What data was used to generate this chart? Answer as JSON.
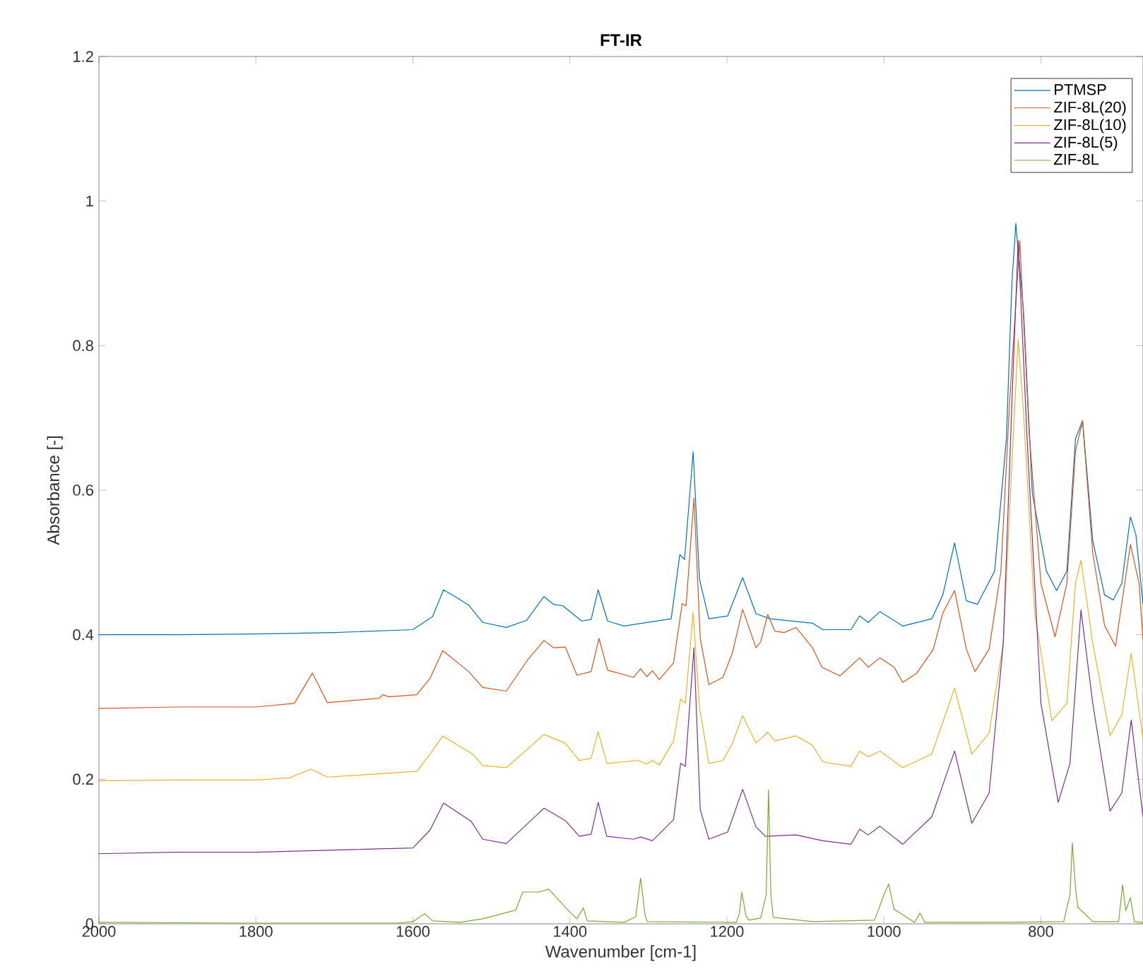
{
  "chart_data": {
    "type": "line",
    "title": "FT-IR",
    "xlabel": "Wavenumber [cm-1]",
    "ylabel": "Absorbance [-]",
    "xlim": [
      2000,
      670
    ],
    "ylim": [
      0,
      1.2
    ],
    "xticks": [
      2000,
      1800,
      1600,
      1400,
      1200,
      1000,
      800
    ],
    "yticks": [
      0,
      0.2,
      0.4,
      0.6,
      0.8,
      1,
      1.2
    ],
    "grid": false,
    "legend": "top right",
    "series": [
      {
        "name": "PTMSP",
        "color": "#0072bd",
        "x": [
          2000,
          1900,
          1800,
          1700,
          1600,
          1575,
          1561,
          1545,
          1529,
          1511,
          1481,
          1455,
          1433,
          1421,
          1409,
          1385,
          1373,
          1364,
          1352,
          1331,
          1271,
          1260,
          1254,
          1243,
          1235,
          1223,
          1199,
          1180,
          1163,
          1145,
          1091,
          1078,
          1042,
          1031,
          1020,
          1005,
          976,
          939,
          925,
          910,
          895,
          881,
          859,
          844,
          837,
          832,
          822,
          811,
          793,
          780,
          767,
          756,
          747,
          734,
          719,
          708,
          697,
          686,
          679,
          670
        ],
        "values": [
          0.4,
          0.4,
          0.401,
          0.403,
          0.407,
          0.425,
          0.462,
          0.452,
          0.441,
          0.417,
          0.41,
          0.42,
          0.453,
          0.442,
          0.44,
          0.419,
          0.421,
          0.462,
          0.419,
          0.412,
          0.422,
          0.511,
          0.504,
          0.653,
          0.477,
          0.422,
          0.426,
          0.479,
          0.429,
          0.422,
          0.416,
          0.407,
          0.407,
          0.426,
          0.417,
          0.432,
          0.412,
          0.422,
          0.455,
          0.527,
          0.447,
          0.442,
          0.488,
          0.671,
          0.886,
          0.969,
          0.845,
          0.596,
          0.488,
          0.461,
          0.488,
          0.671,
          0.696,
          0.53,
          0.455,
          0.448,
          0.471,
          0.563,
          0.538,
          0.442
        ]
      },
      {
        "name": "ZIF-8L(20)",
        "color": "#d95319",
        "x": [
          2000,
          1900,
          1800,
          1751,
          1728,
          1709,
          1643,
          1638,
          1631,
          1595,
          1578,
          1562,
          1529,
          1511,
          1481,
          1454,
          1433,
          1421,
          1406,
          1391,
          1373,
          1363,
          1352,
          1319,
          1310,
          1302,
          1295,
          1286,
          1268,
          1257,
          1252,
          1242,
          1234,
          1223,
          1205,
          1193,
          1180,
          1163,
          1157,
          1148,
          1139,
          1127,
          1112,
          1091,
          1079,
          1056,
          1031,
          1020,
          1005,
          987,
          976,
          958,
          937,
          925,
          910,
          895,
          884,
          866,
          851,
          840,
          827,
          815,
          800,
          782,
          767,
          756,
          747,
          734,
          719,
          705,
          686,
          675,
          670
        ],
        "values": [
          0.298,
          0.3,
          0.3,
          0.305,
          0.347,
          0.306,
          0.312,
          0.317,
          0.314,
          0.317,
          0.34,
          0.378,
          0.349,
          0.327,
          0.322,
          0.365,
          0.392,
          0.382,
          0.383,
          0.344,
          0.349,
          0.395,
          0.351,
          0.341,
          0.353,
          0.342,
          0.35,
          0.338,
          0.361,
          0.443,
          0.44,
          0.589,
          0.395,
          0.331,
          0.341,
          0.375,
          0.435,
          0.382,
          0.39,
          0.428,
          0.405,
          0.403,
          0.41,
          0.382,
          0.355,
          0.343,
          0.368,
          0.355,
          0.368,
          0.355,
          0.334,
          0.347,
          0.38,
          0.43,
          0.461,
          0.38,
          0.349,
          0.38,
          0.488,
          0.72,
          0.945,
          0.679,
          0.471,
          0.397,
          0.471,
          0.654,
          0.696,
          0.513,
          0.413,
          0.384,
          0.525,
          0.471,
          0.393
        ]
      },
      {
        "name": "ZIF-8L(10)",
        "color": "#edb120",
        "x": [
          2000,
          1900,
          1800,
          1757,
          1730,
          1709,
          1650,
          1595,
          1578,
          1562,
          1523,
          1511,
          1481,
          1433,
          1406,
          1388,
          1373,
          1364,
          1353,
          1313,
          1302,
          1295,
          1286,
          1268,
          1259,
          1253,
          1243,
          1235,
          1223,
          1205,
          1193,
          1180,
          1163,
          1148,
          1139,
          1112,
          1091,
          1078,
          1042,
          1031,
          1020,
          1005,
          976,
          939,
          910,
          888,
          866,
          848,
          837,
          829,
          822,
          808,
          786,
          767,
          756,
          749,
          734,
          712,
          697,
          685,
          670
        ],
        "values": [
          0.198,
          0.199,
          0.199,
          0.202,
          0.214,
          0.203,
          0.207,
          0.211,
          0.235,
          0.26,
          0.234,
          0.219,
          0.216,
          0.262,
          0.25,
          0.226,
          0.229,
          0.266,
          0.222,
          0.226,
          0.221,
          0.226,
          0.22,
          0.253,
          0.311,
          0.305,
          0.431,
          0.3,
          0.222,
          0.226,
          0.25,
          0.288,
          0.25,
          0.265,
          0.253,
          0.26,
          0.247,
          0.224,
          0.218,
          0.239,
          0.231,
          0.239,
          0.216,
          0.235,
          0.326,
          0.235,
          0.264,
          0.388,
          0.637,
          0.809,
          0.704,
          0.43,
          0.281,
          0.305,
          0.471,
          0.503,
          0.388,
          0.26,
          0.289,
          0.374,
          0.256
        ]
      },
      {
        "name": "ZIF-8L(5)",
        "color": "#7e2f8e",
        "x": [
          2000,
          1900,
          1800,
          1700,
          1600,
          1578,
          1561,
          1526,
          1511,
          1481,
          1433,
          1406,
          1388,
          1373,
          1364,
          1353,
          1319,
          1310,
          1295,
          1268,
          1259,
          1253,
          1242,
          1234,
          1223,
          1199,
          1180,
          1163,
          1151,
          1112,
          1078,
          1042,
          1031,
          1020,
          1005,
          976,
          939,
          910,
          888,
          866,
          848,
          837,
          829,
          818,
          800,
          778,
          763,
          749,
          734,
          712,
          697,
          685,
          670
        ],
        "values": [
          0.097,
          0.099,
          0.099,
          0.102,
          0.105,
          0.13,
          0.167,
          0.142,
          0.117,
          0.111,
          0.16,
          0.143,
          0.121,
          0.124,
          0.168,
          0.121,
          0.117,
          0.12,
          0.115,
          0.144,
          0.222,
          0.218,
          0.382,
          0.158,
          0.117,
          0.127,
          0.186,
          0.134,
          0.121,
          0.123,
          0.115,
          0.11,
          0.131,
          0.123,
          0.135,
          0.11,
          0.148,
          0.239,
          0.139,
          0.181,
          0.388,
          0.72,
          0.945,
          0.679,
          0.305,
          0.168,
          0.222,
          0.434,
          0.305,
          0.156,
          0.181,
          0.282,
          0.148
        ]
      },
      {
        "name": "ZIF-8L",
        "color": "#77ac30",
        "x": [
          2000,
          1800,
          1620,
          1600,
          1585,
          1575,
          1540,
          1511,
          1469,
          1460,
          1439,
          1427,
          1400,
          1391,
          1383,
          1378,
          1331,
          1316,
          1310,
          1304,
          1301,
          1188,
          1184,
          1181,
          1176,
          1172,
          1157,
          1150,
          1147,
          1144,
          1141,
          1091,
          1012,
          1000,
          994,
          987,
          961,
          954,
          948,
          840,
          771,
          763,
          760,
          756,
          753,
          734,
          701,
          696,
          692,
          686,
          681,
          670
        ],
        "values": [
          0.002,
          0.001,
          0.001,
          0.003,
          0.014,
          0.004,
          0.002,
          0.007,
          0.019,
          0.044,
          0.044,
          0.048,
          0.016,
          0.007,
          0.022,
          0.004,
          0.002,
          0.01,
          0.063,
          0.01,
          0.003,
          0.002,
          0.015,
          0.044,
          0.012,
          0.005,
          0.008,
          0.04,
          0.185,
          0.04,
          0.009,
          0.003,
          0.005,
          0.04,
          0.055,
          0.02,
          0.002,
          0.015,
          0.002,
          0.002,
          0.003,
          0.04,
          0.112,
          0.05,
          0.023,
          0.003,
          0.003,
          0.054,
          0.018,
          0.036,
          0.003,
          0.002
        ]
      }
    ]
  }
}
